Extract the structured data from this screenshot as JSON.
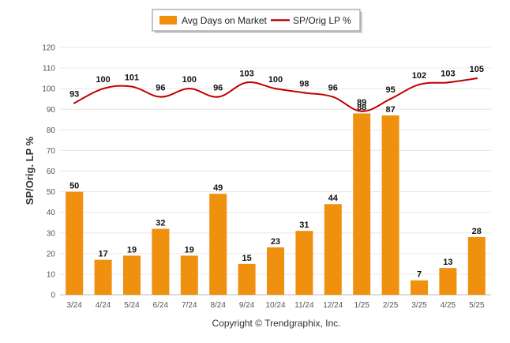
{
  "chart_data": {
    "type": "bar",
    "title": "",
    "xlabel": "",
    "ylabel": "SP/Orig. LP %",
    "ylim": [
      0,
      120
    ],
    "yticks": [
      0,
      10,
      20,
      30,
      40,
      50,
      60,
      70,
      80,
      90,
      100,
      110,
      120
    ],
    "grid": true,
    "legend_position": "top-center",
    "categories": [
      "3/24",
      "4/24",
      "5/24",
      "6/24",
      "7/24",
      "8/24",
      "9/24",
      "10/24",
      "11/24",
      "12/24",
      "1/25",
      "2/25",
      "3/25",
      "4/25",
      "5/25"
    ],
    "series": [
      {
        "name": "Avg Days on Market",
        "type": "bar",
        "color": "#f0900f",
        "values": [
          50,
          17,
          19,
          32,
          19,
          49,
          15,
          23,
          31,
          44,
          88,
          87,
          7,
          13,
          28
        ]
      },
      {
        "name": "SP/Orig LP %",
        "type": "line",
        "color": "#c00000",
        "values": [
          93,
          100,
          101,
          96,
          100,
          96,
          103,
          100,
          98,
          96,
          89,
          95,
          102,
          103,
          105
        ]
      }
    ]
  },
  "footer": {
    "copyright": "Copyright © Trendgraphix, Inc."
  }
}
